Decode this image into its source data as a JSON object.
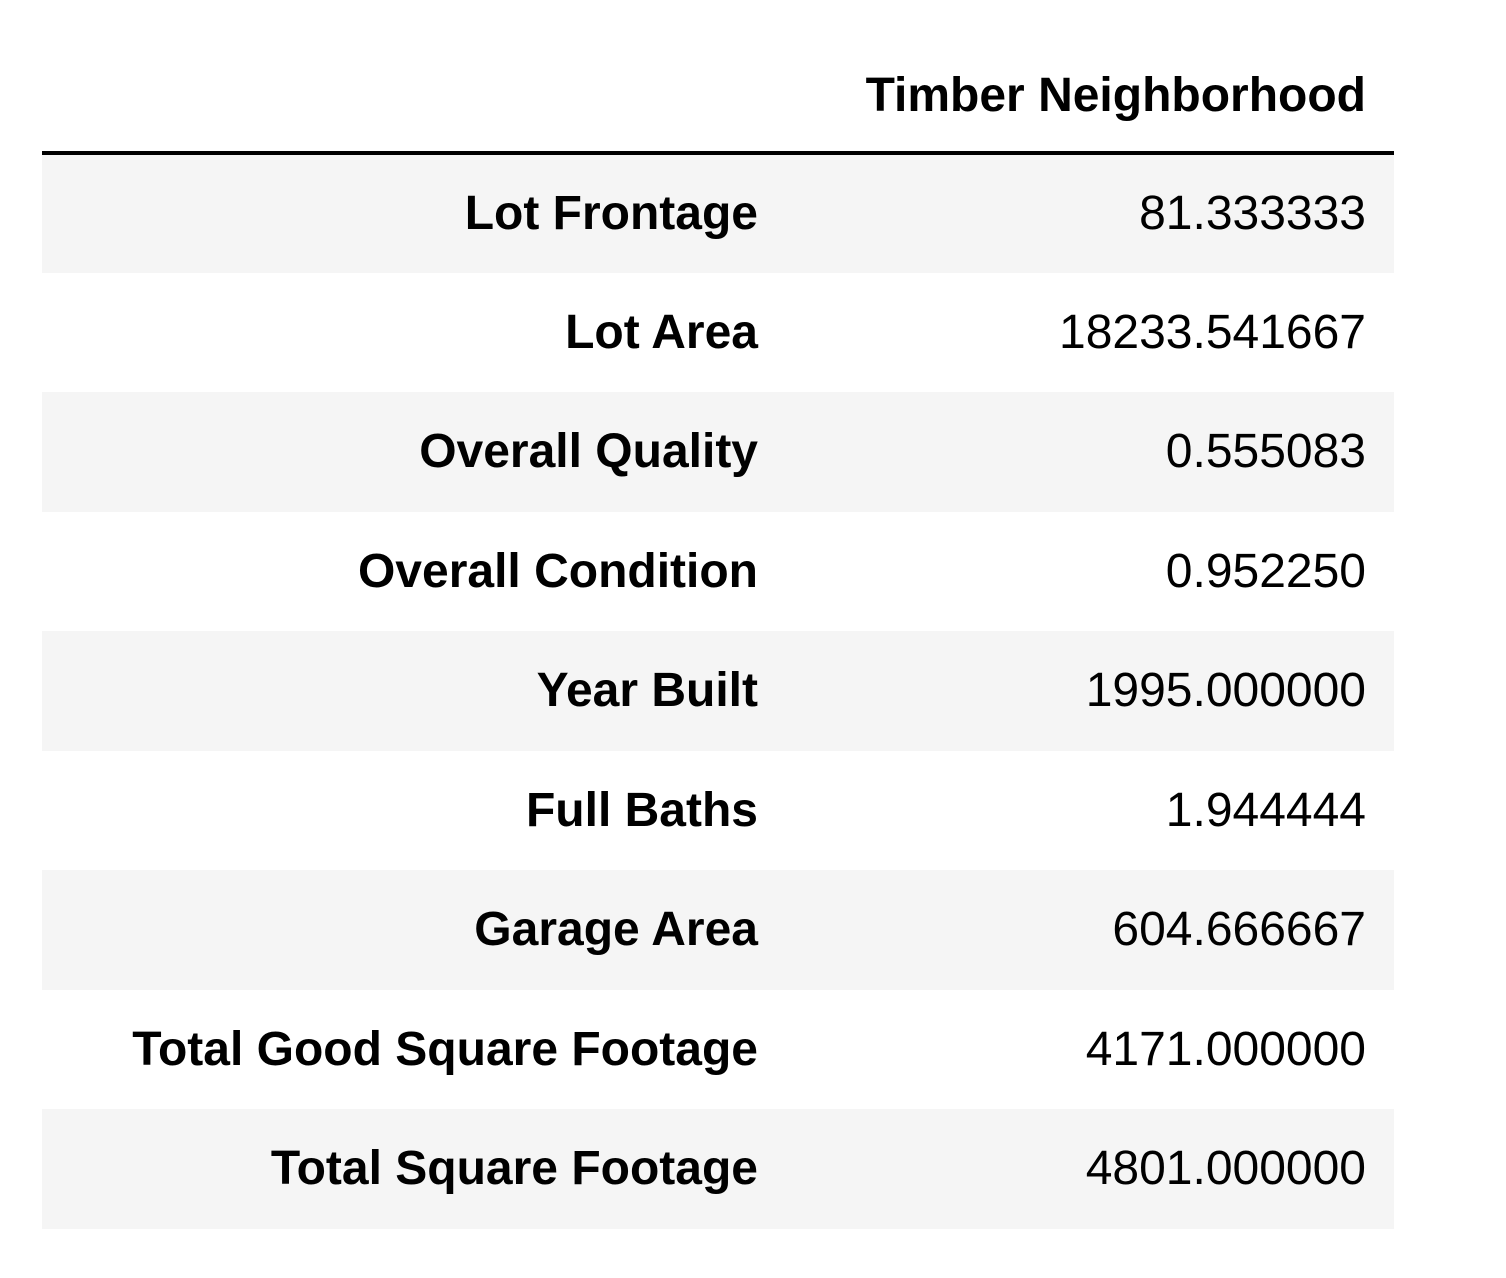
{
  "table": {
    "column_header": "Timber Neighborhood",
    "index_header": "",
    "rows": [
      {
        "label": "Lot Frontage",
        "value": "81.333333"
      },
      {
        "label": "Lot Area",
        "value": "18233.541667"
      },
      {
        "label": "Overall Quality",
        "value": "0.555083"
      },
      {
        "label": "Overall Condition",
        "value": "0.952250"
      },
      {
        "label": "Year Built",
        "value": "1995.000000"
      },
      {
        "label": "Full Baths",
        "value": "1.944444"
      },
      {
        "label": "Garage Area",
        "value": "604.666667"
      },
      {
        "label": "Total Good Square Footage",
        "value": "4171.000000"
      },
      {
        "label": "Total Square Footage",
        "value": "4801.000000"
      }
    ]
  },
  "colors": {
    "stripe": "#f5f5f5",
    "background": "#ffffff",
    "text": "#000000",
    "header_rule": "#000000"
  }
}
